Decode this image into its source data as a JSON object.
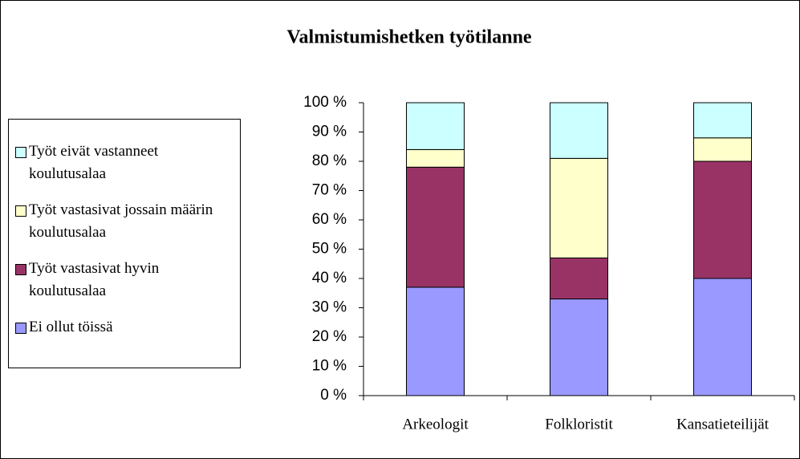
{
  "chart_data": {
    "type": "stacked_bar_100",
    "title": "Valmistumishetken työtilanne",
    "categories": [
      "Arkeologit",
      "Folkloristit",
      "Kansatieteilijät"
    ],
    "series": [
      {
        "name": "Ei ollut töissä",
        "color": "#9999ff",
        "values": [
          37,
          33,
          40
        ]
      },
      {
        "name": "Työt vastasivat hyvin koulutusalaa",
        "color": "#993366",
        "values": [
          41,
          14,
          40
        ]
      },
      {
        "name": "Työt vastasivat jossain määrin koulutusalaa",
        "color": "#ffffcc",
        "values": [
          6,
          34,
          8
        ]
      },
      {
        "name": "Työt eivät vastanneet koulutusalaa",
        "color": "#ccffff",
        "values": [
          16,
          19,
          12
        ]
      }
    ],
    "ylim": [
      0,
      100
    ],
    "yticks": [
      {
        "value": 0,
        "label": "0 %"
      },
      {
        "value": 10,
        "label": "10 %"
      },
      {
        "value": 20,
        "label": "20 %"
      },
      {
        "value": 30,
        "label": "30 %"
      },
      {
        "value": 40,
        "label": "40 %"
      },
      {
        "value": 50,
        "label": "50 %"
      },
      {
        "value": 60,
        "label": "60 %"
      },
      {
        "value": 70,
        "label": "70 %"
      },
      {
        "value": 80,
        "label": "80 %"
      },
      {
        "value": 90,
        "label": "90 %"
      },
      {
        "value": 100,
        "label": "100 %"
      }
    ],
    "legend": "left"
  }
}
